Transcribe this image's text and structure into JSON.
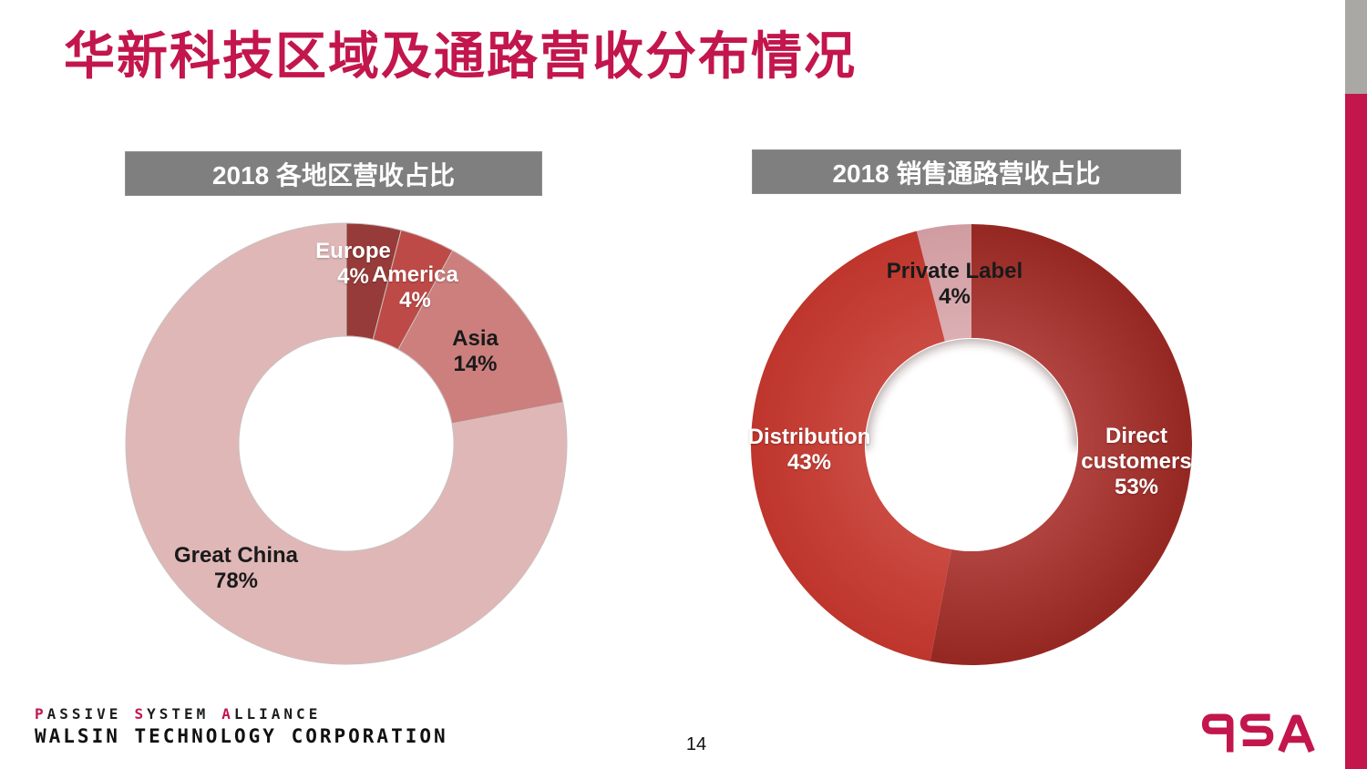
{
  "slide": {
    "title": "华新科技区域及通路营收分布情况",
    "page_number": "14",
    "accent_color": "#C2164C",
    "banner_color": "#7F7F7F",
    "stripe_gray": "#A9A8A4"
  },
  "footer": {
    "line1_words": [
      {
        "initial": "P",
        "rest": "ASSIVE"
      },
      {
        "initial": "S",
        "rest": "YSTEM"
      },
      {
        "initial": "A",
        "rest": "LLIANCE"
      }
    ],
    "line2": "WALSIN TECHNOLOGY CORPORATION",
    "logo_text": "PSA"
  },
  "chart_data": [
    {
      "type": "pie",
      "variant": "donut",
      "title": "2018 各地区营收占比",
      "unit": "%",
      "legend": "none",
      "labels_on_chart": true,
      "start_angle_deg": 0,
      "direction": "clockwise",
      "slices": [
        {
          "label": "Europe",
          "value": 4,
          "value_label": "4%",
          "color": "#963B39",
          "label_color": "white"
        },
        {
          "label": "America",
          "value": 4,
          "value_label": "4%",
          "color": "#BD4A46",
          "label_color": "white"
        },
        {
          "label": "Asia",
          "value": 14,
          "value_label": "14%",
          "color": "#CC7F7D",
          "label_color": "black"
        },
        {
          "label": "Great China",
          "value": 78,
          "value_label": "78%",
          "color": "#DFB7B6",
          "label_color": "black"
        }
      ]
    },
    {
      "type": "pie",
      "variant": "donut",
      "title": "2018 销售通路营收占比",
      "unit": "%",
      "legend": "none",
      "labels_on_chart": true,
      "start_angle_deg": 0,
      "direction": "clockwise",
      "slices": [
        {
          "label": "Direct customers",
          "value": 53,
          "value_label": "53%",
          "color": "#952722",
          "color_inner": "#B0433F",
          "label_color": "white"
        },
        {
          "label": "Distribution",
          "value": 43,
          "value_label": "43%",
          "color": "#BE352C",
          "color_inner": "#CA4A41",
          "label_color": "white"
        },
        {
          "label": "Private Label",
          "value": 4,
          "value_label": "4%",
          "color": "#D09CA1",
          "color_inner": "#DBAFB3",
          "label_color": "black"
        }
      ]
    }
  ]
}
